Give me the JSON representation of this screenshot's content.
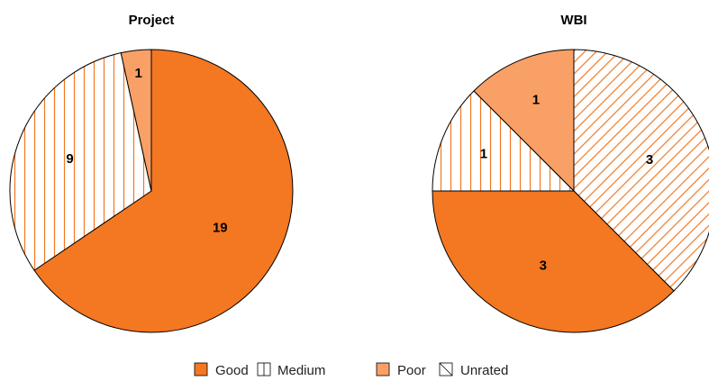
{
  "chart_data": [
    {
      "type": "pie",
      "title": "Project",
      "slices": [
        {
          "label": "Good",
          "value": 19
        },
        {
          "label": "Medium",
          "value": 9
        },
        {
          "label": "Poor",
          "value": 1
        }
      ]
    },
    {
      "type": "pie",
      "title": "WBI",
      "slices": [
        {
          "label": "Unrated",
          "value": 3
        },
        {
          "label": "Good",
          "value": 3
        },
        {
          "label": "Medium",
          "value": 1
        },
        {
          "label": "Poor",
          "value": 1
        }
      ]
    }
  ],
  "legend": {
    "placement": "bottom",
    "items": [
      {
        "label": "Good",
        "key": "Good"
      },
      {
        "label": "Medium",
        "key": "Medium"
      },
      {
        "label": "Poor",
        "key": "Poor"
      },
      {
        "label": "Unrated",
        "key": "Unrated"
      }
    ]
  },
  "colors": {
    "Good": "#f47721",
    "Poor": "#f9a066",
    "pattern_stroke": "#f47721",
    "outline": "#000000"
  }
}
